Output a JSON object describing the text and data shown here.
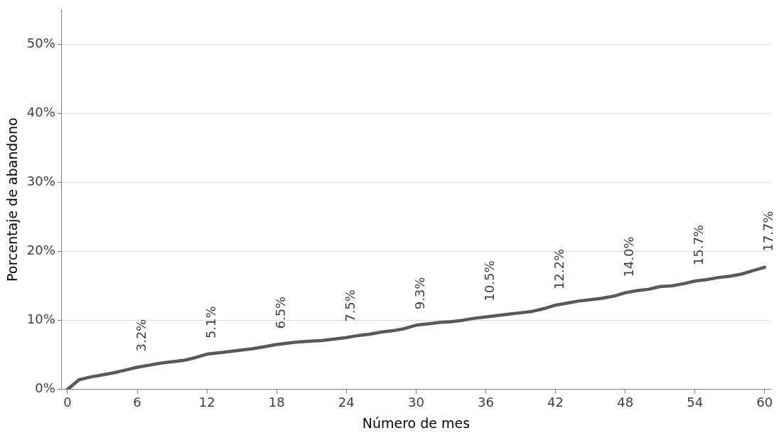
{
  "chart_data": {
    "type": "line",
    "xlabel": "Número de mes",
    "ylabel": "Porcentaje de abandono",
    "x": [
      0,
      1,
      2,
      3,
      4,
      5,
      6,
      7,
      8,
      9,
      10,
      11,
      12,
      13,
      14,
      15,
      16,
      17,
      18,
      19,
      20,
      21,
      22,
      23,
      24,
      25,
      26,
      27,
      28,
      29,
      30,
      31,
      32,
      33,
      34,
      35,
      36,
      37,
      38,
      39,
      40,
      41,
      42,
      43,
      44,
      45,
      46,
      47,
      48,
      49,
      50,
      51,
      52,
      53,
      54,
      55,
      56,
      57,
      58,
      59,
      60
    ],
    "series": [
      {
        "color": "#595959",
        "values": [
          0,
          1.4,
          1.8,
          2.1,
          2.4,
          2.8,
          3.2,
          3.5,
          3.8,
          4.0,
          4.2,
          4.6,
          5.1,
          5.3,
          5.5,
          5.7,
          5.9,
          6.2,
          6.5,
          6.7,
          6.9,
          7.0,
          7.1,
          7.3,
          7.5,
          7.8,
          8.0,
          8.3,
          8.5,
          8.8,
          9.3,
          9.5,
          9.7,
          9.8,
          10.0,
          10.3,
          10.5,
          10.7,
          10.9,
          11.1,
          11.3,
          11.7,
          12.2,
          12.5,
          12.8,
          13.0,
          13.2,
          13.5,
          14.0,
          14.3,
          14.5,
          14.9,
          15.0,
          15.3,
          15.7,
          15.9,
          16.2,
          16.4,
          16.7,
          17.2,
          17.7
        ],
        "value_labels": [
          null,
          null,
          null,
          null,
          null,
          null,
          "3.2%",
          null,
          null,
          null,
          null,
          null,
          "5.1%",
          null,
          null,
          null,
          null,
          null,
          "6.5%",
          null,
          null,
          null,
          null,
          null,
          "7.5%",
          null,
          null,
          null,
          null,
          null,
          "9.3%",
          null,
          null,
          null,
          null,
          null,
          "10.5%",
          null,
          null,
          null,
          null,
          null,
          "12.2%",
          null,
          null,
          null,
          null,
          null,
          "14.0%",
          null,
          null,
          null,
          null,
          null,
          "15.7%",
          null,
          null,
          null,
          null,
          null,
          "17.7%"
        ]
      }
    ],
    "xlim": [
      -0.5,
      60.5
    ],
    "xticks": [
      0,
      6,
      12,
      18,
      24,
      30,
      36,
      42,
      48,
      54,
      60
    ],
    "ylim": [
      0,
      55
    ],
    "yticks": [
      {
        "value": 0,
        "label": "0%"
      },
      {
        "value": 10,
        "label": "10%"
      },
      {
        "value": 20,
        "label": "20%"
      },
      {
        "value": 30,
        "label": "30%"
      },
      {
        "value": 40,
        "label": "40%"
      },
      {
        "value": 50,
        "label": "50%"
      }
    ],
    "grid": "y",
    "legend": false,
    "marker": "none",
    "line_style": "solid"
  }
}
